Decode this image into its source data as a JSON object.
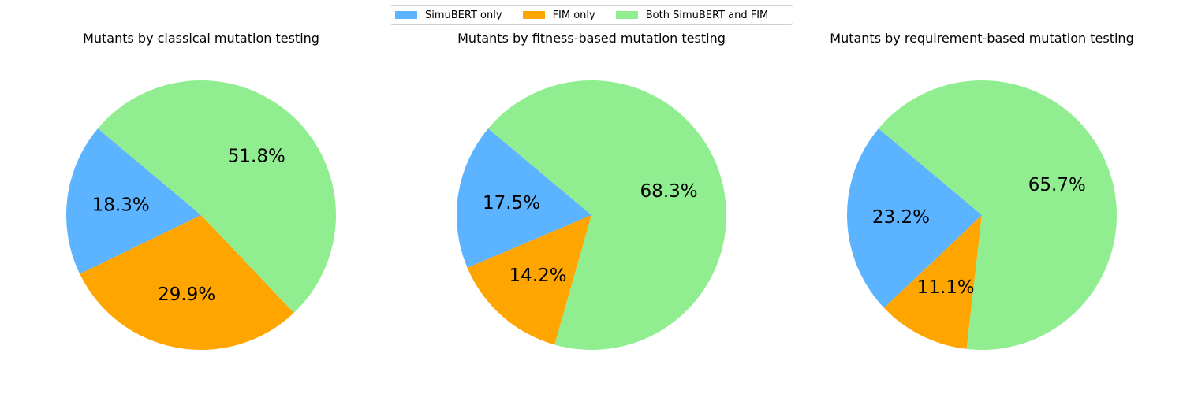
{
  "legend": {
    "items": [
      {
        "label": "SimuBERT only",
        "color": "#5cb3ff"
      },
      {
        "label": "FIM only",
        "color": "#ffa500"
      },
      {
        "label": "Both SimuBERT and FIM",
        "color": "#90ee90"
      }
    ]
  },
  "chart_data": [
    {
      "type": "pie",
      "title": "Mutants by classical mutation testing",
      "categories": [
        "SimuBERT only",
        "FIM only",
        "Both SimuBERT and FIM"
      ],
      "values": [
        18.3,
        29.9,
        51.8
      ],
      "labels": [
        "18.3%",
        "29.9%",
        "51.8%"
      ],
      "colors": [
        "#5cb3ff",
        "#ffa500",
        "#90ee90"
      ],
      "start_angle_deg": 140,
      "direction": "counterclockwise"
    },
    {
      "type": "pie",
      "title": "Mutants by fitness-based mutation testing",
      "categories": [
        "SimuBERT only",
        "FIM only",
        "Both SimuBERT and FIM"
      ],
      "values": [
        17.5,
        14.2,
        68.3
      ],
      "labels": [
        "17.5%",
        "14.2%",
        "68.3%"
      ],
      "colors": [
        "#5cb3ff",
        "#ffa500",
        "#90ee90"
      ],
      "start_angle_deg": 140,
      "direction": "counterclockwise"
    },
    {
      "type": "pie",
      "title": "Mutants by requirement-based mutation testing",
      "categories": [
        "SimuBERT only",
        "FIM only",
        "Both SimuBERT and FIM"
      ],
      "values": [
        23.2,
        11.1,
        65.7
      ],
      "labels": [
        "23.2%",
        "11.1%",
        "65.7%"
      ],
      "colors": [
        "#5cb3ff",
        "#ffa500",
        "#90ee90"
      ],
      "start_angle_deg": 140,
      "direction": "counterclockwise"
    }
  ]
}
